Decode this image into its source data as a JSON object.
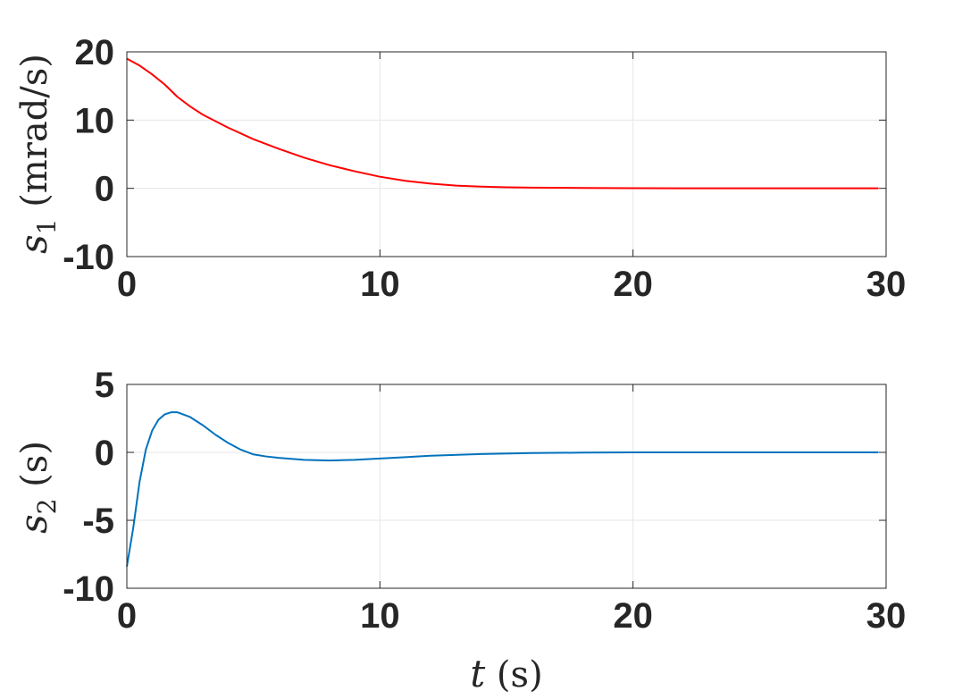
{
  "chart_data": [
    {
      "type": "line",
      "ylabel_symbol": "s",
      "ylabel_sub": "1",
      "ylabel_unit": " (mrad/s)",
      "xlabel_symbol": "",
      "xlabel_unit": "",
      "xlim": [
        0,
        30
      ],
      "ylim": [
        -10,
        20
      ],
      "xticks": [
        0,
        10,
        20,
        30
      ],
      "yticks": [
        -10,
        0,
        10,
        20
      ],
      "grid": true,
      "series": [
        {
          "color": "#ff0000",
          "x": [
            0,
            0.5,
            1,
            1.5,
            2,
            2.5,
            3,
            4,
            5,
            6,
            7,
            8,
            9,
            10,
            11,
            12,
            13,
            14,
            15,
            16,
            18,
            20,
            22,
            25,
            28,
            29.7
          ],
          "y": [
            19.0,
            18.0,
            16.7,
            15.2,
            13.4,
            12.0,
            10.8,
            8.9,
            7.2,
            5.8,
            4.5,
            3.4,
            2.5,
            1.7,
            1.1,
            0.7,
            0.4,
            0.25,
            0.15,
            0.1,
            0.05,
            0.02,
            0.01,
            0,
            0,
            0
          ]
        }
      ]
    },
    {
      "type": "line",
      "ylabel_symbol": "s",
      "ylabel_sub": "2",
      "ylabel_unit": " (s)",
      "xlabel_symbol": "t",
      "xlabel_unit": " (s)",
      "xlim": [
        0,
        30
      ],
      "ylim": [
        -10,
        5
      ],
      "xticks": [
        0,
        10,
        20,
        30
      ],
      "yticks": [
        -10,
        -5,
        0,
        5
      ],
      "grid": true,
      "series": [
        {
          "color": "#0072bd",
          "x": [
            0,
            0.25,
            0.5,
            0.75,
            1,
            1.25,
            1.5,
            1.75,
            2,
            2.5,
            3,
            3.5,
            4,
            4.5,
            5,
            5.5,
            6,
            7,
            8,
            9,
            10,
            11,
            12,
            14,
            16,
            18,
            20,
            25,
            29.7
          ],
          "y": [
            -8.4,
            -5.6,
            -2.2,
            0.2,
            1.6,
            2.4,
            2.8,
            2.95,
            2.95,
            2.6,
            2.0,
            1.3,
            0.7,
            0.2,
            -0.15,
            -0.3,
            -0.4,
            -0.55,
            -0.6,
            -0.55,
            -0.45,
            -0.35,
            -0.25,
            -0.12,
            -0.05,
            -0.02,
            0,
            0,
            0
          ]
        }
      ]
    }
  ]
}
